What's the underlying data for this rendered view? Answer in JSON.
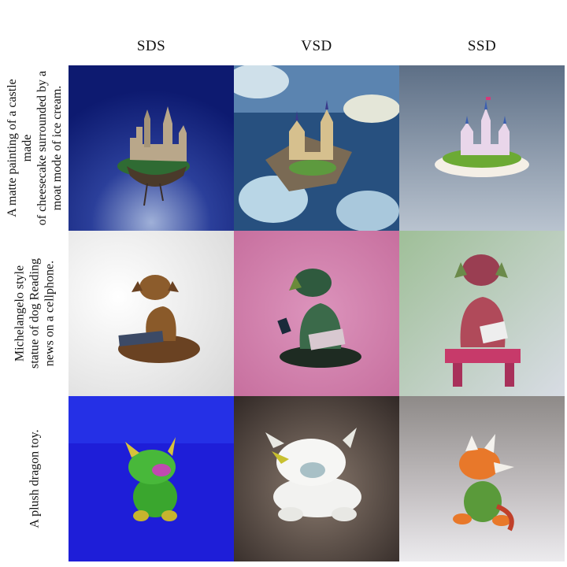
{
  "columns": [
    "SDS",
    "VSD",
    "SSD"
  ],
  "rows": [
    {
      "prompt_lines": [
        "A matte painting of a castle made",
        "of cheesecake surrounded by a",
        "moat mode of ice cream."
      ],
      "cells": [
        "castle-sds",
        "castle-vsd",
        "castle-ssd"
      ]
    },
    {
      "prompt_lines": [
        "Michelangelo style",
        "statue of dog Reading",
        "news on a cellphone."
      ],
      "cells": [
        "dog-sds",
        "dog-vsd",
        "dog-ssd"
      ]
    },
    {
      "prompt_lines": [
        "A plush dragon toy."
      ],
      "cells": [
        "dragon-sds",
        "dragon-vsd",
        "dragon-ssd"
      ]
    }
  ]
}
